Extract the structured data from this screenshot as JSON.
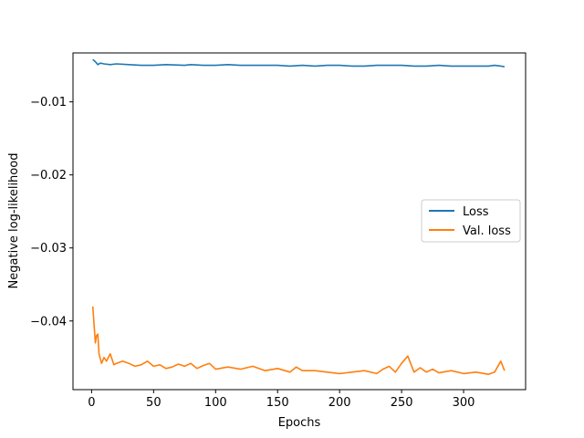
{
  "chart_data": {
    "type": "line",
    "title": "",
    "xlabel": "Epochs",
    "ylabel": "Negative log-likelihood",
    "xlim": [
      -15,
      350
    ],
    "ylim": [
      -0.0494,
      -0.0033
    ],
    "xticks": [
      0,
      50,
      100,
      150,
      200,
      250,
      300
    ],
    "xtick_labels": [
      "0",
      "50",
      "100",
      "150",
      "200",
      "250",
      "300"
    ],
    "yticks": [
      -0.01,
      -0.02,
      -0.03,
      -0.04
    ],
    "ytick_labels": [
      "−0.01",
      "−0.02",
      "−0.03",
      "−0.04"
    ],
    "grid": false,
    "legend_position": "center-right",
    "series": [
      {
        "name": "Loss",
        "color": "#1f77b4",
        "x": [
          1,
          3,
          5,
          7,
          10,
          15,
          20,
          30,
          40,
          50,
          60,
          75,
          80,
          90,
          100,
          110,
          120,
          130,
          140,
          150,
          160,
          170,
          180,
          190,
          200,
          210,
          220,
          230,
          240,
          250,
          260,
          270,
          280,
          290,
          300,
          310,
          320,
          325,
          330,
          333
        ],
        "y": [
          -0.0042,
          -0.0045,
          -0.0049,
          -0.0047,
          -0.0048,
          -0.0049,
          -0.0048,
          -0.0049,
          -0.005,
          -0.005,
          -0.0049,
          -0.005,
          -0.0049,
          -0.005,
          -0.005,
          -0.0049,
          -0.005,
          -0.005,
          -0.005,
          -0.005,
          -0.0051,
          -0.005,
          -0.0051,
          -0.005,
          -0.005,
          -0.0051,
          -0.0051,
          -0.005,
          -0.005,
          -0.005,
          -0.0051,
          -0.0051,
          -0.005,
          -0.0051,
          -0.0051,
          -0.0051,
          -0.0051,
          -0.005,
          -0.0051,
          -0.0052
        ]
      },
      {
        "name": "Val. loss",
        "color": "#ff7f0e",
        "x": [
          1,
          3,
          4,
          5,
          6,
          8,
          10,
          12,
          15,
          18,
          20,
          25,
          30,
          35,
          40,
          45,
          50,
          55,
          60,
          65,
          70,
          75,
          80,
          85,
          90,
          95,
          100,
          110,
          120,
          130,
          140,
          150,
          160,
          165,
          170,
          180,
          190,
          200,
          210,
          220,
          230,
          235,
          240,
          245,
          250,
          255,
          260,
          265,
          270,
          275,
          280,
          290,
          300,
          310,
          320,
          325,
          330,
          333
        ],
        "y": [
          -0.038,
          -0.043,
          -0.042,
          -0.0418,
          -0.0445,
          -0.0458,
          -0.045,
          -0.0455,
          -0.0445,
          -0.046,
          -0.0458,
          -0.0455,
          -0.0458,
          -0.0462,
          -0.046,
          -0.0455,
          -0.0462,
          -0.046,
          -0.0465,
          -0.0463,
          -0.0459,
          -0.0462,
          -0.0458,
          -0.0465,
          -0.0461,
          -0.0458,
          -0.0466,
          -0.0463,
          -0.0466,
          -0.0462,
          -0.0468,
          -0.0465,
          -0.047,
          -0.0463,
          -0.0468,
          -0.0468,
          -0.047,
          -0.0472,
          -0.047,
          -0.0468,
          -0.0472,
          -0.0466,
          -0.0462,
          -0.047,
          -0.0458,
          -0.0448,
          -0.047,
          -0.0464,
          -0.047,
          -0.0466,
          -0.0471,
          -0.0468,
          -0.0472,
          -0.047,
          -0.0473,
          -0.047,
          -0.0455,
          -0.0468
        ]
      }
    ]
  }
}
